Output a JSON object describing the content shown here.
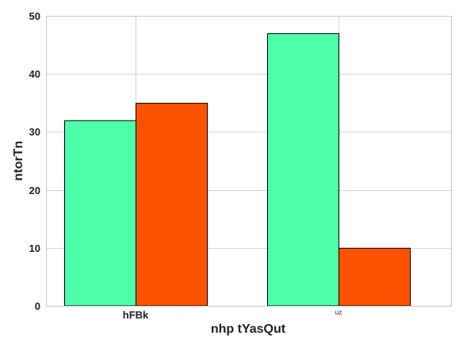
{
  "chart_data": {
    "type": "bar",
    "title": "",
    "xlabel": "nhp  tYasQut",
    "ylabel": "ntorTn",
    "categories": [
      "hFBk",
      "uz"
    ],
    "series": [
      {
        "values": [
          32,
          47
        ],
        "color": "#4dffaa"
      },
      {
        "values": [
          35,
          10
        ],
        "color": "#ff5200"
      }
    ],
    "ylim": [
      0,
      50
    ],
    "yticks": [
      0,
      10,
      20,
      30,
      40,
      50
    ],
    "grid": true
  }
}
